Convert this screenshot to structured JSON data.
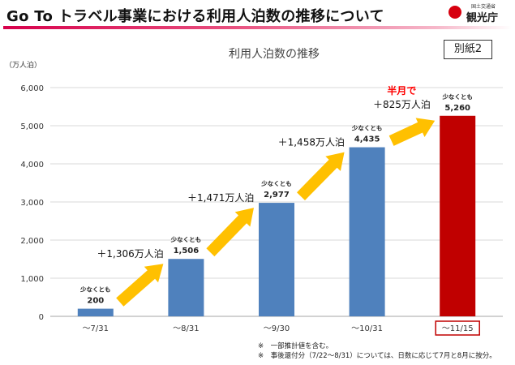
{
  "page": {
    "title": "Go To トラベル事業における利用人泊数の推移について",
    "logo": {
      "small_text": "国土交通省",
      "main_text": "観光庁"
    },
    "appendix_label": "別紙2",
    "footnotes": [
      "※　一部推計値を含む。",
      "※　事後還付分（7/22～8/31）については、日数に応じて7月と8月に按分。"
    ]
  },
  "chart_data": {
    "type": "bar",
    "title": "利用人泊数の推移",
    "ylabel": "（万人泊）",
    "xlabel": "",
    "ylim": [
      0,
      6000
    ],
    "yticks": [
      0,
      1000,
      2000,
      3000,
      4000,
      5000,
      6000
    ],
    "ytick_labels": [
      "0",
      "1,000",
      "2,000",
      "3,000",
      "4,000",
      "5,000",
      "6,000"
    ],
    "grid": true,
    "categories": [
      "～7/31",
      "～8/31",
      "～9/30",
      "～10/31",
      "～11/15"
    ],
    "values": [
      200,
      1506,
      2977,
      4435,
      5260
    ],
    "value_labels": [
      "200",
      "1,506",
      "2,977",
      "4,435",
      "5,260"
    ],
    "bar_prefix_label": "少なくとも",
    "bar_colors": [
      "#4f81bd",
      "#4f81bd",
      "#4f81bd",
      "#4f81bd",
      "#c00000"
    ],
    "highlighted_category": "～11/15",
    "highlight_color": "#c00000",
    "arrow_color": "#ffc000",
    "increments": [
      {
        "label": "＋1,306万人泊",
        "note": ""
      },
      {
        "label": "＋1,471万人泊",
        "note": ""
      },
      {
        "label": "＋1,458万人泊",
        "note": ""
      },
      {
        "label": "＋825万人泊",
        "note": "半月で"
      }
    ]
  }
}
